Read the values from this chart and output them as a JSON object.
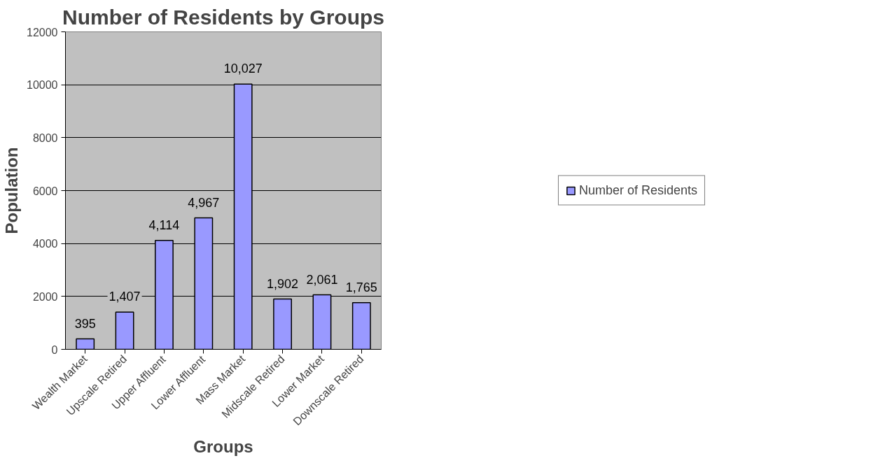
{
  "chart_data": {
    "type": "bar",
    "title": "Number of Residents by Groups",
    "xlabel": "Groups",
    "ylabel": "Population",
    "categories": [
      "Wealth Market",
      "Upscale Retired",
      "Upper Affluent",
      "Lower Affluent",
      "Mass Market",
      "Midscale Retired",
      "Lower Market",
      "Downscale Retired"
    ],
    "series": [
      {
        "name": "Number of Residents",
        "color": "#9999ff",
        "values": [
          395,
          1407,
          4114,
          4967,
          10027,
          1902,
          2061,
          1765
        ],
        "value_labels": [
          "395",
          "1,407",
          "4,114",
          "4,967",
          "10,027",
          "1,902",
          "2,061",
          "1,765"
        ]
      }
    ],
    "ylim": [
      0,
      12000
    ],
    "yticks": [
      0,
      2000,
      4000,
      6000,
      8000,
      10000,
      12000
    ],
    "grid": "y",
    "legend": "right"
  }
}
